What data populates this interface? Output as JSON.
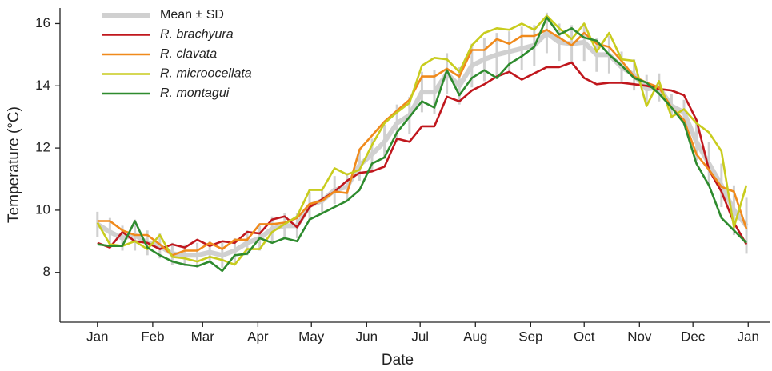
{
  "chart_data": {
    "type": "line",
    "xlabel": "Date",
    "ylabel": "Temperature (°C)",
    "x": [
      0,
      7,
      14,
      21,
      28,
      35,
      42,
      49,
      56,
      63,
      70,
      77,
      84,
      91,
      98,
      105,
      112,
      119,
      126,
      133,
      140,
      147,
      154,
      161,
      168,
      175,
      182,
      189,
      196,
      203,
      210,
      217,
      224,
      231,
      238,
      245,
      252,
      259,
      266,
      273,
      280,
      287,
      294,
      301,
      308,
      315,
      322,
      329,
      336,
      343,
      350,
      357,
      364
    ],
    "xlim": [
      -21,
      377
    ],
    "xticks": [
      {
        "value": 0,
        "label": "Jan"
      },
      {
        "value": 31,
        "label": "Feb"
      },
      {
        "value": 59,
        "label": "Mar"
      },
      {
        "value": 90,
        "label": "Apr"
      },
      {
        "value": 120,
        "label": "May"
      },
      {
        "value": 151,
        "label": "Jun"
      },
      {
        "value": 181,
        "label": "Jul"
      },
      {
        "value": 212,
        "label": "Aug"
      },
      {
        "value": 243,
        "label": "Sep"
      },
      {
        "value": 273,
        "label": "Oct"
      },
      {
        "value": 304,
        "label": "Nov"
      },
      {
        "value": 334,
        "label": "Dec"
      },
      {
        "value": 365,
        "label": "Jan"
      }
    ],
    "ylim": [
      6.4,
      16.5
    ],
    "yticks": [
      8,
      10,
      12,
      14,
      16
    ],
    "legend": "upper left",
    "series": [
      {
        "name": "Mean ± SD",
        "color": "#d0d0d0",
        "values": [
          9.55,
          9.3,
          9.1,
          9.2,
          8.95,
          8.85,
          8.6,
          8.55,
          8.55,
          8.65,
          8.55,
          8.7,
          8.95,
          9.1,
          9.4,
          9.5,
          9.5,
          10.15,
          10.3,
          10.65,
          10.75,
          11.45,
          11.8,
          12.2,
          12.8,
          13.05,
          13.8,
          13.8,
          14.4,
          14.0,
          14.65,
          14.85,
          15.0,
          15.1,
          15.2,
          15.3,
          15.7,
          15.4,
          15.35,
          15.4,
          15.0,
          15.0,
          14.6,
          14.35,
          13.9,
          13.95,
          13.35,
          13.15,
          12.2,
          11.5,
          10.8,
          10.0,
          9.5
        ],
        "errors": [
          0.4,
          0.45,
          0.4,
          0.5,
          0.4,
          0.4,
          0.35,
          0.35,
          0.4,
          0.35,
          0.4,
          0.4,
          0.4,
          0.4,
          0.4,
          0.4,
          0.4,
          0.45,
          0.4,
          0.45,
          0.45,
          0.5,
          0.5,
          0.55,
          0.6,
          0.6,
          0.65,
          0.7,
          0.65,
          0.6,
          0.7,
          0.7,
          0.7,
          0.65,
          0.7,
          0.65,
          0.65,
          0.6,
          0.6,
          0.6,
          0.55,
          0.6,
          0.5,
          0.5,
          0.45,
          0.45,
          0.4,
          0.4,
          0.6,
          0.7,
          0.7,
          0.8,
          0.9
        ]
      },
      {
        "name": "R. brachyura",
        "color": "#c0171d",
        "values": [
          8.95,
          8.8,
          9.3,
          9.0,
          8.95,
          8.75,
          8.9,
          8.8,
          9.05,
          8.85,
          9.0,
          8.95,
          9.3,
          9.25,
          9.7,
          9.8,
          9.45,
          10.1,
          10.35,
          10.6,
          10.95,
          11.2,
          11.25,
          11.4,
          12.3,
          12.2,
          12.7,
          12.7,
          13.65,
          13.5,
          13.85,
          14.05,
          14.3,
          14.45,
          14.2,
          14.4,
          14.6,
          14.6,
          14.75,
          14.25,
          14.05,
          14.1,
          14.1,
          14.05,
          14.0,
          13.9,
          13.85,
          13.7,
          12.9,
          11.3,
          10.6,
          9.6,
          8.9
        ]
      },
      {
        "name": "R. clavata",
        "color": "#f08a1c",
        "values": [
          9.65,
          9.65,
          9.35,
          9.2,
          9.2,
          8.9,
          8.55,
          8.7,
          8.7,
          8.95,
          8.75,
          9.05,
          9.05,
          9.55,
          9.55,
          9.6,
          9.75,
          10.2,
          10.3,
          10.6,
          10.55,
          11.95,
          12.4,
          12.85,
          13.2,
          13.55,
          14.3,
          14.3,
          14.55,
          14.3,
          15.15,
          15.15,
          15.5,
          15.35,
          15.6,
          15.6,
          15.8,
          15.55,
          15.3,
          15.7,
          15.35,
          15.25,
          14.8,
          14.3,
          14.1,
          13.95,
          13.3,
          12.9,
          11.8,
          11.3,
          10.75,
          10.6,
          9.4
        ]
      },
      {
        "name": "R. microocellata",
        "color": "#c8cc1e",
        "values": [
          9.6,
          8.9,
          8.85,
          9.0,
          8.75,
          9.2,
          8.5,
          8.45,
          8.35,
          8.5,
          8.4,
          8.25,
          8.75,
          8.75,
          9.3,
          9.55,
          9.8,
          10.65,
          10.65,
          11.35,
          11.15,
          11.3,
          12.1,
          12.8,
          13.15,
          13.45,
          14.65,
          14.9,
          14.85,
          14.45,
          15.3,
          15.7,
          15.85,
          15.8,
          16.0,
          15.8,
          16.25,
          15.85,
          15.5,
          16.0,
          15.1,
          15.7,
          14.85,
          14.8,
          13.35,
          14.15,
          13.0,
          13.25,
          12.8,
          12.5,
          11.9,
          9.45,
          10.8
        ]
      },
      {
        "name": "R. montagui",
        "color": "#2e8b2e",
        "values": [
          8.9,
          8.85,
          8.85,
          9.65,
          8.8,
          8.55,
          8.35,
          8.25,
          8.2,
          8.35,
          8.05,
          8.55,
          8.6,
          9.1,
          8.95,
          9.1,
          9.0,
          9.7,
          9.9,
          10.1,
          10.3,
          10.65,
          11.5,
          11.7,
          12.5,
          13.0,
          13.5,
          13.3,
          14.5,
          13.7,
          14.25,
          14.5,
          14.25,
          14.7,
          14.95,
          15.25,
          16.2,
          15.65,
          15.85,
          15.55,
          15.45,
          15.0,
          14.65,
          14.25,
          14.1,
          13.75,
          13.3,
          12.8,
          11.5,
          10.8,
          9.75,
          9.35,
          8.95
        ]
      }
    ]
  }
}
